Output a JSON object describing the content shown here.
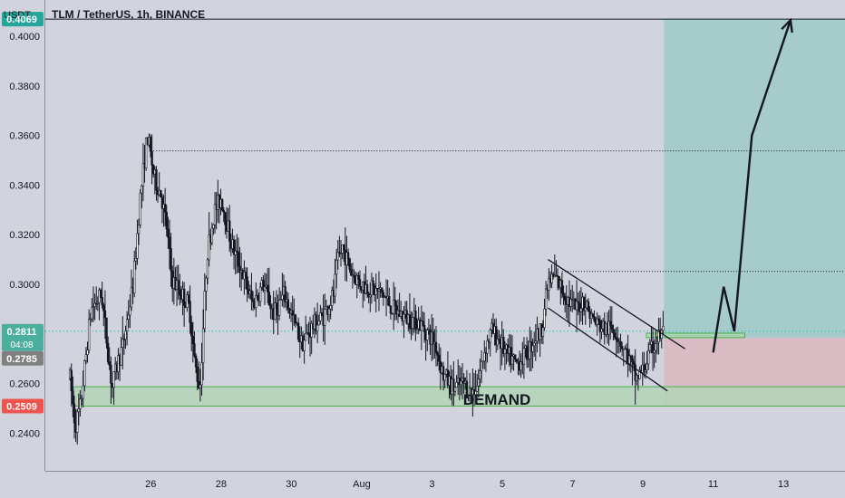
{
  "header": {
    "unit": "USDT",
    "title": "TLM / TetherUS, 1h, BINANCE"
  },
  "price_badges": {
    "target": "0.4069",
    "current": "0.2811",
    "countdown": "04:08",
    "entry": "0.2785",
    "stop": "0.2509"
  },
  "annotations": {
    "demand_label": "DEMAND"
  },
  "colors": {
    "background": "#d1d4dc",
    "candle": "#131722",
    "target_badge": "#26a69a",
    "stop_badge": "#ef5350",
    "current_badge": "#4caf9e",
    "entry_badge": "#808080",
    "profit_zone": "#a6cbcb",
    "loss_zone": "#d9bcc4",
    "demand_zone": "#b4d3b6",
    "demand_border": "#4caf50"
  },
  "chart_data": {
    "type": "candlestick",
    "title": "TLM / TetherUS, 1h, BINANCE",
    "ylabel": "USDT",
    "ylim": [
      0.2248,
      0.4146
    ],
    "y_ticks": [
      "0.4000",
      "0.3800",
      "0.3600",
      "0.3400",
      "0.3200",
      "0.3000",
      "0.2800",
      "0.2600",
      "0.2400"
    ],
    "x_ticks": [
      "26",
      "28",
      "30",
      "Aug",
      "3",
      "5",
      "7",
      "9",
      "11",
      "13"
    ],
    "x_tick_days": [
      26,
      28,
      30,
      32,
      34,
      36,
      38,
      40,
      42,
      44
    ],
    "price_path": [
      [
        23.7,
        0.262
      ],
      [
        23.85,
        0.243
      ],
      [
        24.0,
        0.251
      ],
      [
        24.3,
        0.29
      ],
      [
        24.6,
        0.296
      ],
      [
        24.9,
        0.258
      ],
      [
        25.05,
        0.268
      ],
      [
        25.2,
        0.275
      ],
      [
        25.5,
        0.3
      ],
      [
        25.7,
        0.335
      ],
      [
        25.9,
        0.36
      ],
      [
        26.1,
        0.343
      ],
      [
        26.3,
        0.336
      ],
      [
        26.45,
        0.323
      ],
      [
        26.6,
        0.302
      ],
      [
        26.8,
        0.298
      ],
      [
        27.1,
        0.291
      ],
      [
        27.25,
        0.268
      ],
      [
        27.4,
        0.258
      ],
      [
        27.6,
        0.312
      ],
      [
        27.8,
        0.329
      ],
      [
        28.0,
        0.335
      ],
      [
        28.3,
        0.316
      ],
      [
        28.6,
        0.305
      ],
      [
        28.9,
        0.292
      ],
      [
        29.2,
        0.3
      ],
      [
        29.5,
        0.288
      ],
      [
        29.8,
        0.296
      ],
      [
        30.0,
        0.288
      ],
      [
        30.3,
        0.276
      ],
      [
        30.6,
        0.283
      ],
      [
        30.9,
        0.287
      ],
      [
        31.2,
        0.296
      ],
      [
        31.3,
        0.308
      ],
      [
        31.45,
        0.315
      ],
      [
        31.7,
        0.305
      ],
      [
        32.0,
        0.3
      ],
      [
        32.3,
        0.298
      ],
      [
        32.6,
        0.296
      ],
      [
        32.9,
        0.29
      ],
      [
        33.2,
        0.287
      ],
      [
        33.6,
        0.285
      ],
      [
        33.9,
        0.28
      ],
      [
        34.1,
        0.276
      ],
      [
        34.3,
        0.264
      ],
      [
        34.6,
        0.258
      ],
      [
        34.9,
        0.26
      ],
      [
        35.1,
        0.256
      ],
      [
        35.3,
        0.26
      ],
      [
        35.5,
        0.274
      ],
      [
        35.7,
        0.281
      ],
      [
        35.9,
        0.278
      ],
      [
        36.1,
        0.272
      ],
      [
        36.4,
        0.268
      ],
      [
        36.7,
        0.272
      ],
      [
        36.9,
        0.278
      ],
      [
        37.1,
        0.281
      ],
      [
        37.3,
        0.3
      ],
      [
        37.5,
        0.303
      ],
      [
        37.7,
        0.298
      ],
      [
        37.9,
        0.293
      ],
      [
        38.1,
        0.29
      ],
      [
        38.3,
        0.294
      ],
      [
        38.6,
        0.285
      ],
      [
        38.9,
        0.282
      ],
      [
        39.2,
        0.282
      ],
      [
        39.4,
        0.276
      ],
      [
        39.6,
        0.27
      ],
      [
        39.8,
        0.262
      ],
      [
        40.0,
        0.265
      ],
      [
        40.2,
        0.272
      ],
      [
        40.4,
        0.278
      ],
      [
        40.6,
        0.2811
      ]
    ],
    "series": [
      {
        "name": "",
        "type": "line",
        "x": [
          42.0,
          42.3,
          42.6,
          43.1,
          44.2
        ],
        "y": [
          0.2725,
          0.299,
          0.2811,
          0.36,
          0.4065
        ]
      }
    ],
    "levels": {
      "target": 0.4069,
      "current": 0.2811,
      "entry": 0.2785,
      "stop": 0.2509,
      "resistance_high": 0.3538,
      "resistance_mid": 0.3052
    },
    "zones": [
      {
        "name": "DEMAND",
        "x": [
          23.8,
          46.7
        ],
        "y": [
          0.2509,
          0.2587
        ]
      },
      {
        "name": "",
        "x": [
          40.1,
          42.9
        ],
        "y": [
          0.2785,
          0.2803
        ]
      }
    ],
    "channel": {
      "upper": [
        [
          37.3,
          0.31
        ],
        [
          41.2,
          0.274
        ]
      ],
      "lower": [
        [
          37.3,
          0.2905
        ],
        [
          40.7,
          0.257
        ]
      ]
    },
    "position": {
      "x": [
        40.6,
        46.7
      ],
      "target": 0.4069,
      "entry": 0.2785,
      "stop": 0.2509
    },
    "grid": false
  }
}
